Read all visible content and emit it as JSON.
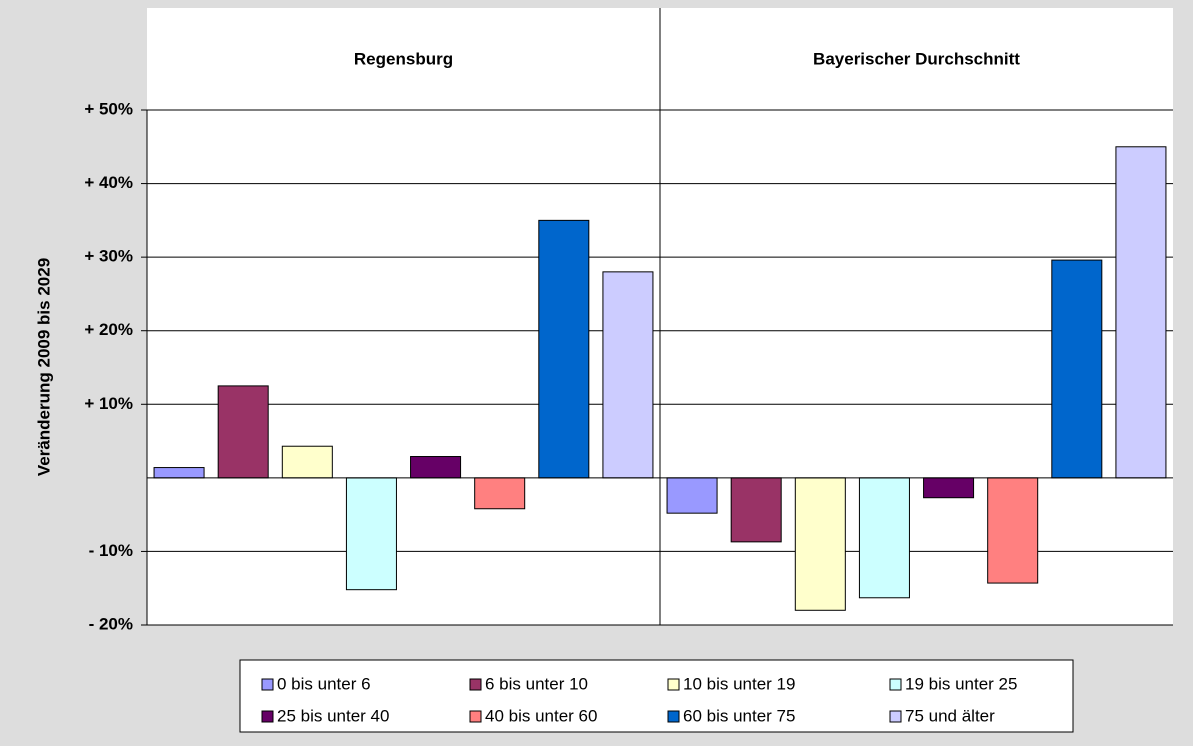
{
  "chart_data": {
    "type": "bar",
    "categories": [
      "Regensburg",
      "Bayerischer Durchschnitt"
    ],
    "y_label": "Veränderung 2009 bis 2029",
    "series": [
      {
        "name": "0 bis unter 6",
        "color": "#9999ff",
        "values": [
          1.4,
          -4.8
        ]
      },
      {
        "name": "6 bis unter 10",
        "color": "#993366",
        "values": [
          12.5,
          -8.7
        ]
      },
      {
        "name": "10 bis unter 19",
        "color": "#ffffcc",
        "values": [
          4.3,
          -18
        ]
      },
      {
        "name": "19 bis unter 25",
        "color": "#ccffff",
        "values": [
          -15.2,
          -16.3
        ]
      },
      {
        "name": "25 bis unter 40",
        "color": "#660066",
        "values": [
          2.9,
          -2.7
        ]
      },
      {
        "name": "40 bis unter 60",
        "color": "#ff8080",
        "values": [
          -4.2,
          -14.3
        ]
      },
      {
        "name": "60 bis unter 75",
        "color": "#0066cc",
        "values": [
          35,
          29.6
        ]
      },
      {
        "name": "75 und älter",
        "color": "#ccccff",
        "values": [
          28,
          45
        ]
      }
    ],
    "ylim": [
      -20,
      50
    ],
    "yticks": [
      {
        "value": -20,
        "label": "- 20%"
      },
      {
        "value": -10,
        "label": "- 10%"
      },
      {
        "value": 10,
        "label": "+ 10%"
      },
      {
        "value": 20,
        "label": "+ 20%"
      },
      {
        "value": 30,
        "label": "+ 30%"
      },
      {
        "value": 40,
        "label": "+ 40%"
      },
      {
        "value": 50,
        "label": "+ 50%"
      }
    ],
    "grid": true,
    "legend": "bottom"
  }
}
